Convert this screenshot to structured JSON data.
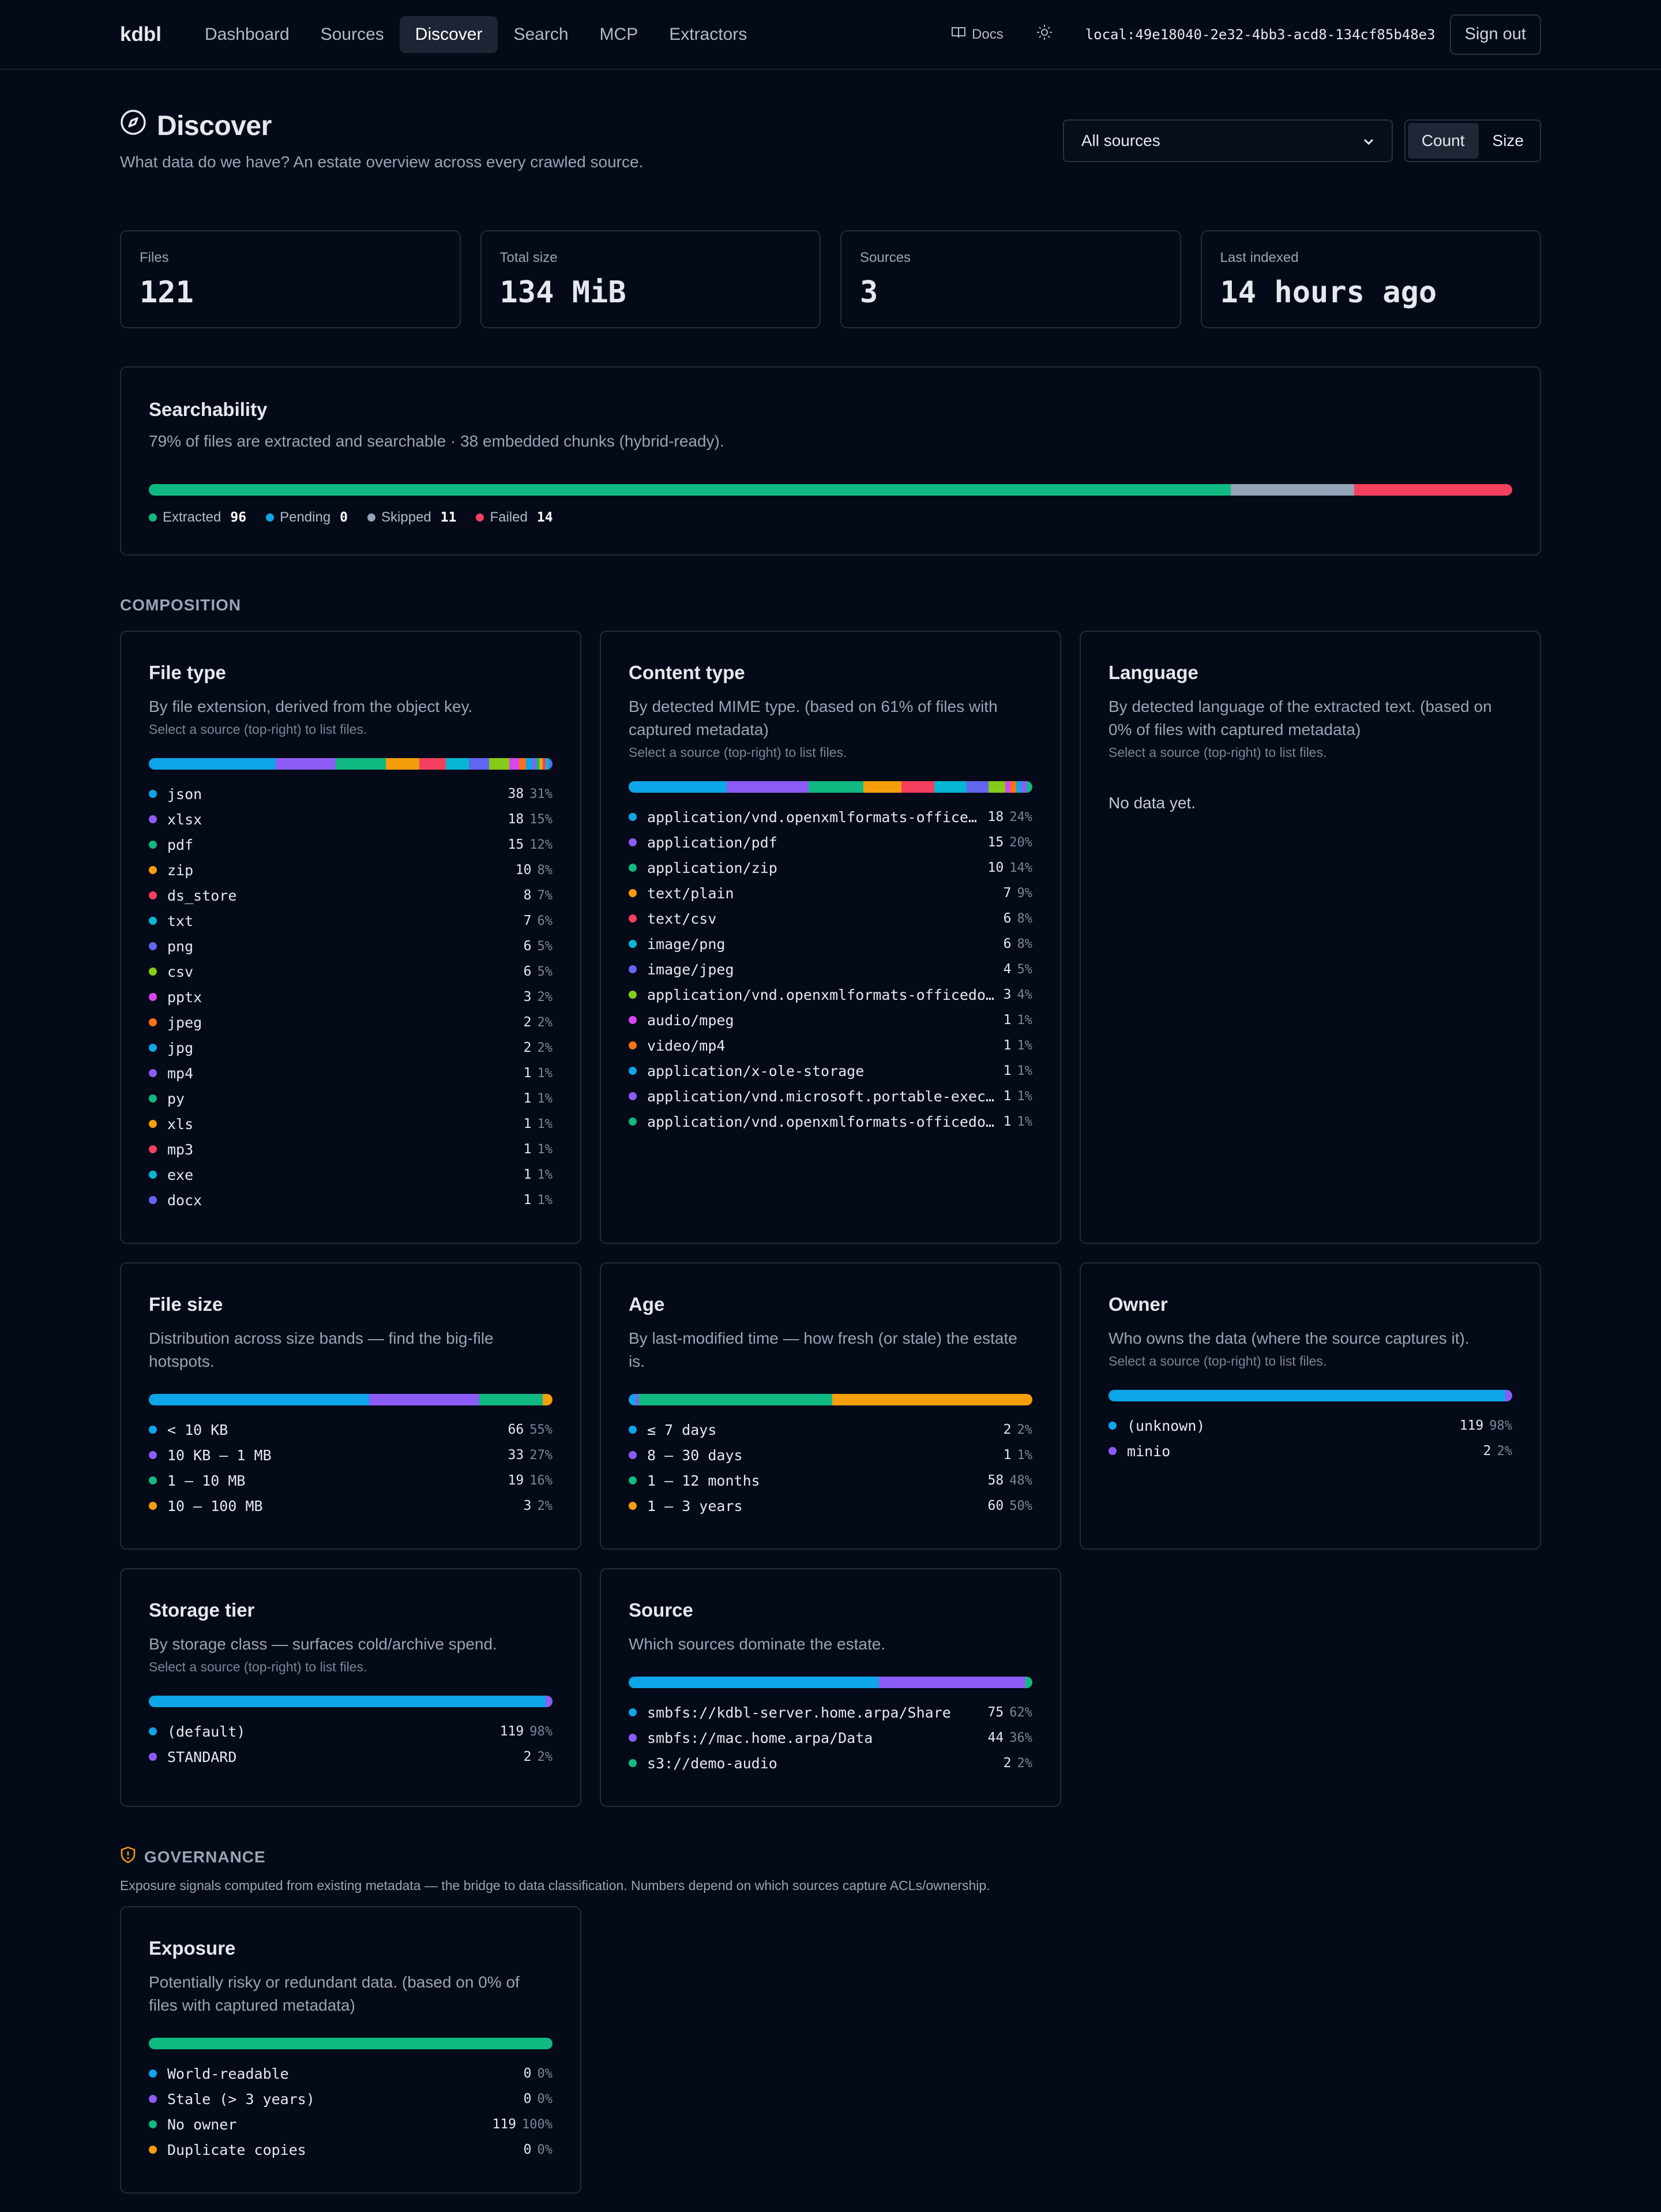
{
  "nav": {
    "brand": "kdbl",
    "links": [
      "Dashboard",
      "Sources",
      "Discover",
      "Search",
      "MCP",
      "Extractors"
    ],
    "active": "Discover",
    "docs": "Docs",
    "token": "local:49e18040-2e32-4bb3-acd8-134cf85b48e3",
    "signout": "Sign out"
  },
  "page": {
    "title": "Discover",
    "subtitle": "What data do we have? An estate overview across every crawled source.",
    "select": "All sources",
    "toggle": [
      "Count",
      "Size"
    ],
    "toggle_active": "Count"
  },
  "stats": [
    {
      "label": "Files",
      "value": "121"
    },
    {
      "label": "Total size",
      "value": "134 MiB"
    },
    {
      "label": "Sources",
      "value": "3"
    },
    {
      "label": "Last indexed",
      "value": "14 hours ago"
    }
  ],
  "searchability": {
    "title": "Searchability",
    "desc": "79% of files are extracted and searchable · 38 embedded chunks (hybrid-ready).",
    "legend": [
      {
        "label": "Extracted",
        "value": 96,
        "color": "#10b981"
      },
      {
        "label": "Pending",
        "value": 0,
        "color": "#0ea5e9"
      },
      {
        "label": "Skipped",
        "value": 11,
        "color": "#94a3b8"
      },
      {
        "label": "Failed",
        "value": 14,
        "color": "#f43f5e"
      }
    ]
  },
  "composition_label": "COMPOSITION",
  "governance": {
    "label": "GOVERNANCE",
    "desc": "Exposure signals computed from existing metadata — the bridge to data classification. Numbers depend on which sources capture ACLs/ownership."
  },
  "palette": [
    "#0ea5e9",
    "#8b5cf6",
    "#10b981",
    "#f59e0b",
    "#f43f5e",
    "#06b6d4",
    "#6366f1",
    "#84cc16",
    "#d946ef",
    "#f97316"
  ],
  "cards": [
    {
      "title": "File type",
      "desc": "By file extension, derived from the object key.",
      "hint": "Select a source (top-right) to list files.",
      "rows": [
        {
          "name": "json",
          "count": 38,
          "pct": "31%"
        },
        {
          "name": "xlsx",
          "count": 18,
          "pct": "15%"
        },
        {
          "name": "pdf",
          "count": 15,
          "pct": "12%"
        },
        {
          "name": "zip",
          "count": 10,
          "pct": "8%"
        },
        {
          "name": "ds_store",
          "count": 8,
          "pct": "7%"
        },
        {
          "name": "txt",
          "count": 7,
          "pct": "6%"
        },
        {
          "name": "png",
          "count": 6,
          "pct": "5%"
        },
        {
          "name": "csv",
          "count": 6,
          "pct": "5%"
        },
        {
          "name": "pptx",
          "count": 3,
          "pct": "2%"
        },
        {
          "name": "jpeg",
          "count": 2,
          "pct": "2%"
        },
        {
          "name": "jpg",
          "count": 2,
          "pct": "2%"
        },
        {
          "name": "mp4",
          "count": 1,
          "pct": "1%"
        },
        {
          "name": "py",
          "count": 1,
          "pct": "1%"
        },
        {
          "name": "xls",
          "count": 1,
          "pct": "1%"
        },
        {
          "name": "mp3",
          "count": 1,
          "pct": "1%"
        },
        {
          "name": "exe",
          "count": 1,
          "pct": "1%"
        },
        {
          "name": "docx",
          "count": 1,
          "pct": "1%"
        }
      ]
    },
    {
      "title": "Content type",
      "desc": "By detected MIME type. (based on 61% of files with captured metadata)",
      "hint": "Select a source (top-right) to list files.",
      "rows": [
        {
          "name": "application/vnd.openxmlformats-officedocument.spreadsheetml.sheet",
          "count": 18,
          "pct": "24%"
        },
        {
          "name": "application/pdf",
          "count": 15,
          "pct": "20%"
        },
        {
          "name": "application/zip",
          "count": 10,
          "pct": "14%"
        },
        {
          "name": "text/plain",
          "count": 7,
          "pct": "9%"
        },
        {
          "name": "text/csv",
          "count": 6,
          "pct": "8%"
        },
        {
          "name": "image/png",
          "count": 6,
          "pct": "8%"
        },
        {
          "name": "image/jpeg",
          "count": 4,
          "pct": "5%"
        },
        {
          "name": "application/vnd.openxmlformats-officedocument.presentationml",
          "count": 3,
          "pct": "4%"
        },
        {
          "name": "audio/mpeg",
          "count": 1,
          "pct": "1%"
        },
        {
          "name": "video/mp4",
          "count": 1,
          "pct": "1%"
        },
        {
          "name": "application/x-ole-storage",
          "count": 1,
          "pct": "1%"
        },
        {
          "name": "application/vnd.microsoft.portable-executable",
          "count": 1,
          "pct": "1%"
        },
        {
          "name": "application/vnd.openxmlformats-officedocument.wordprocessingml",
          "count": 1,
          "pct": "1%"
        }
      ]
    },
    {
      "title": "Language",
      "desc": "By detected language of the extracted text. (based on 0% of files with captured metadata)",
      "hint": "Select a source (top-right) to list files.",
      "empty": "No data yet.",
      "rows": []
    },
    {
      "title": "File size",
      "desc": "Distribution across size bands — find the big-file hotspots.",
      "rows": [
        {
          "name": "< 10 KB",
          "count": 66,
          "pct": "55%"
        },
        {
          "name": "10 KB – 1 MB",
          "count": 33,
          "pct": "27%"
        },
        {
          "name": "1 – 10 MB",
          "count": 19,
          "pct": "16%"
        },
        {
          "name": "10 – 100 MB",
          "count": 3,
          "pct": "2%"
        }
      ]
    },
    {
      "title": "Age",
      "desc": "By last-modified time — how fresh (or stale) the estate is.",
      "rows": [
        {
          "name": "≤ 7 days",
          "count": 2,
          "pct": "2%"
        },
        {
          "name": "8 – 30 days",
          "count": 1,
          "pct": "1%"
        },
        {
          "name": "1 – 12 months",
          "count": 58,
          "pct": "48%"
        },
        {
          "name": "1 – 3 years",
          "count": 60,
          "pct": "50%"
        }
      ]
    },
    {
      "title": "Owner",
      "desc": "Who owns the data (where the source captures it).",
      "hint": "Select a source (top-right) to list files.",
      "rows": [
        {
          "name": "(unknown)",
          "count": 119,
          "pct": "98%"
        },
        {
          "name": "minio",
          "count": 2,
          "pct": "2%"
        }
      ]
    },
    {
      "title": "Storage tier",
      "desc": "By storage class — surfaces cold/archive spend.",
      "hint": "Select a source (top-right) to list files.",
      "rows": [
        {
          "name": "(default)",
          "count": 119,
          "pct": "98%"
        },
        {
          "name": "STANDARD",
          "count": 2,
          "pct": "2%"
        }
      ]
    },
    {
      "title": "Source",
      "desc": "Which sources dominate the estate.",
      "rows": [
        {
          "name": "smbfs://kdbl-server.home.arpa/Share",
          "count": 75,
          "pct": "62%"
        },
        {
          "name": "smbfs://mac.home.arpa/Data",
          "count": 44,
          "pct": "36%"
        },
        {
          "name": "s3://demo-audio",
          "count": 2,
          "pct": "2%"
        }
      ]
    }
  ],
  "exposure": {
    "title": "Exposure",
    "desc": "Potentially risky or redundant data. (based on 0% of files with captured metadata)",
    "rows": [
      {
        "name": "World-readable",
        "count": 0,
        "pct": "0%"
      },
      {
        "name": "Stale (> 3 years)",
        "count": 0,
        "pct": "0%"
      },
      {
        "name": "No owner",
        "count": 119,
        "pct": "100%"
      },
      {
        "name": "Duplicate copies",
        "count": 0,
        "pct": "0%"
      }
    ]
  }
}
